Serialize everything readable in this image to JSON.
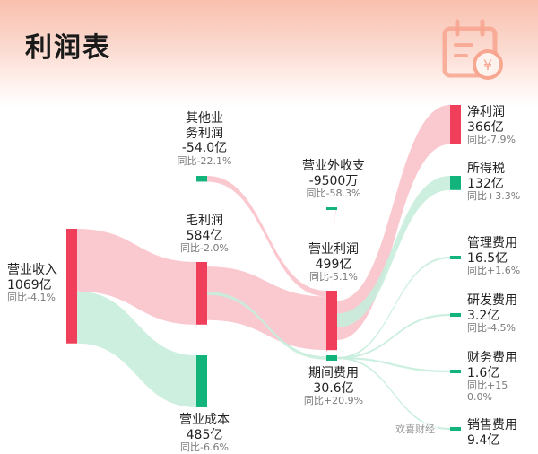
{
  "page": {
    "title": "利润表"
  },
  "watermark": "欢喜财经",
  "colors": {
    "income": "#f03f5b",
    "expense": "#13b47c",
    "flow_income": "#f9c2ca",
    "flow_expense": "#c6eddc"
  },
  "chart_data": {
    "type": "sankey",
    "title": "利润表",
    "nodes": [
      {
        "id": "revenue",
        "name": "营业收入",
        "value": "1069亿",
        "yoy": "同比-4.1%",
        "kind": "income"
      },
      {
        "id": "other",
        "name": "其他业务利润",
        "name_lines": [
          "其他业",
          "务利润"
        ],
        "value": "-54.0亿",
        "yoy": "同比-22.1%",
        "kind": "expense"
      },
      {
        "id": "gross",
        "name": "毛利润",
        "value": "584亿",
        "yoy": "同比-2.0%",
        "kind": "income"
      },
      {
        "id": "cost",
        "name": "营业成本",
        "value": "485亿",
        "yoy": "同比-6.6%",
        "kind": "expense"
      },
      {
        "id": "nonop",
        "name": "营业外收支",
        "value": "-9500万",
        "yoy": "同比-58.3%",
        "kind": "expense"
      },
      {
        "id": "opprofit",
        "name": "营业利润",
        "value": "499亿",
        "yoy": "同比-5.1%",
        "kind": "income"
      },
      {
        "id": "period",
        "name": "期间费用",
        "value": "30.6亿",
        "yoy": "同比+20.9%",
        "kind": "expense"
      },
      {
        "id": "net",
        "name": "净利润",
        "value": "366亿",
        "yoy": "同比-7.9%",
        "kind": "income"
      },
      {
        "id": "tax",
        "name": "所得税",
        "value": "132亿",
        "yoy": "同比+3.3%",
        "kind": "expense"
      },
      {
        "id": "mgmt",
        "name": "管理费用",
        "value": "16.5亿",
        "yoy": "同比+1.6%",
        "kind": "expense"
      },
      {
        "id": "rd",
        "name": "研发费用",
        "value": "3.2亿",
        "yoy": "同比-4.5%",
        "kind": "expense"
      },
      {
        "id": "fin",
        "name": "财务费用",
        "value": "1.6亿",
        "yoy": "同比+15",
        "yoy2": "0.0%",
        "kind": "expense"
      },
      {
        "id": "sales",
        "name": "销售费用",
        "value": "9.4亿",
        "kind": "expense"
      }
    ],
    "links": [
      {
        "source": "revenue",
        "target": "gross",
        "value": 584
      },
      {
        "source": "revenue",
        "target": "cost",
        "value": 485
      },
      {
        "source": "other",
        "target": "opprofit",
        "value": 54
      },
      {
        "source": "gross",
        "target": "opprofit",
        "value": 499
      },
      {
        "source": "gross",
        "target": "period",
        "value": 30.6
      },
      {
        "source": "nonop",
        "target": "opprofit",
        "value": 0.95
      },
      {
        "source": "opprofit",
        "target": "net",
        "value": 366
      },
      {
        "source": "opprofit",
        "target": "tax",
        "value": 132
      },
      {
        "source": "period",
        "target": "mgmt",
        "value": 16.5
      },
      {
        "source": "period",
        "target": "rd",
        "value": 3.2
      },
      {
        "source": "period",
        "target": "fin",
        "value": 1.6
      },
      {
        "source": "period",
        "target": "sales",
        "value": 9.4
      }
    ]
  }
}
